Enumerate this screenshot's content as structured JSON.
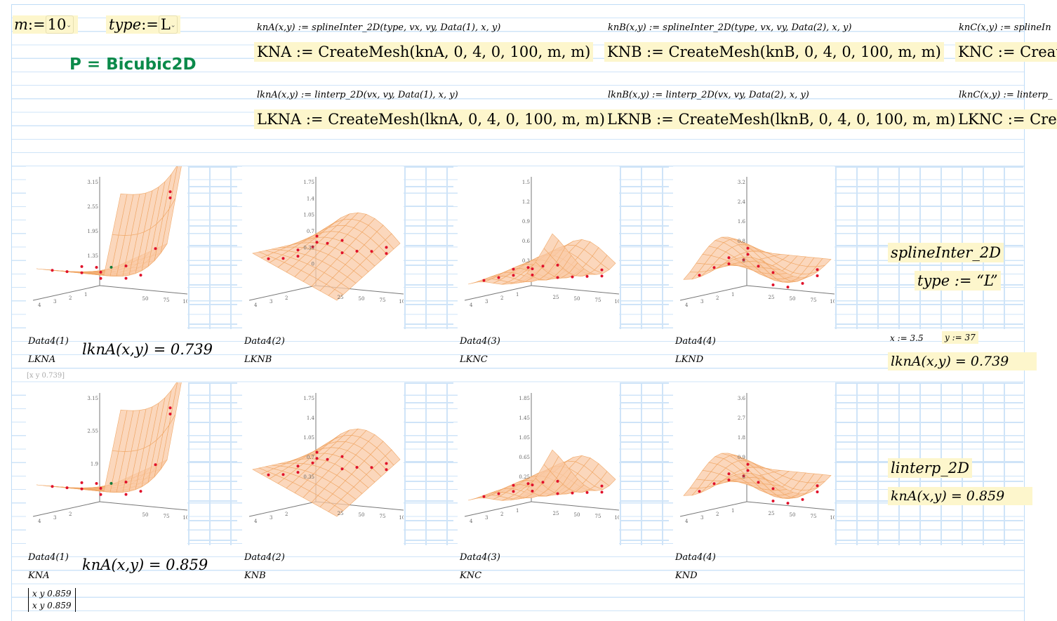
{
  "inputs": {
    "m_label": "m",
    "m_value": "10",
    "type_label": "type",
    "type_value": "L",
    "assign": ":="
  },
  "result_p": "P = Bicubic2D",
  "defs": [
    {
      "spline": "knA(x,y) := splineInter_2D(type, vx, vy, Data(1), x, y)",
      "mesh": "KNA := CreateMesh(knA, 0, 4, 0, 100, m, m)",
      "ldef": "lknA(x,y) := linterp_2D(vx, vy, Data(1), x, y)",
      "lmesh": "LKNA := CreateMesh(lknA, 0, 4, 0, 100, m, m)"
    },
    {
      "spline": "knB(x,y) := splineInter_2D(type, vx, vy, Data(2), x, y)",
      "mesh": "KNB := CreateMesh(knB, 0, 4, 0, 100, m, m)",
      "ldef": "lknB(x,y) := linterp_2D(vx, vy, Data(2), x, y)",
      "lmesh": "LKNB := CreateMesh(lknB, 0, 4, 0, 100, m, m)"
    },
    {
      "spline": "knC(x,y) := splineIn",
      "mesh": "KNC := Create",
      "ldef": "lknC(x,y) := linterp_",
      "lmesh": "LKNC := Creat"
    }
  ],
  "plots_top": [
    {
      "data": "Data4(1)",
      "mesh": "LKNA",
      "zticks": [
        "3.15",
        "2.55",
        "1.95",
        "1.35"
      ],
      "xticks": [
        "4",
        "3",
        "2",
        "1"
      ],
      "yticks": [
        "50",
        "75",
        "100"
      ]
    },
    {
      "data": "Data4(2)",
      "mesh": "LKNB",
      "zticks": [
        "1.75",
        "1.4",
        "1.05",
        "0.7",
        "0.35",
        "0"
      ],
      "xticks": [
        "4",
        "3",
        "2"
      ],
      "yticks": [
        "25",
        "50",
        "75",
        "100"
      ]
    },
    {
      "data": "Data4(3)",
      "mesh": "LKNC",
      "zticks": [
        "1.5",
        "1.2",
        "0.9",
        "0.6",
        "0.3"
      ],
      "xticks": [
        "4",
        "3",
        "2",
        "1"
      ],
      "yticks": [
        "25",
        "50",
        "75",
        "100"
      ]
    },
    {
      "data": "Data4(4)",
      "mesh": "LKND",
      "zticks": [
        "3.2",
        "2.4",
        "1.6",
        "0.8",
        "0"
      ],
      "xticks": [
        "4",
        "3",
        "2",
        "1"
      ],
      "yticks": [
        "25",
        "50",
        "75",
        "100"
      ]
    }
  ],
  "plots_bottom": [
    {
      "data": "Data4(1)",
      "mesh": "KNA",
      "zticks": [
        "3.15",
        "2.55",
        "1.9"
      ],
      "xticks": [
        "4",
        "3",
        "2"
      ],
      "yticks": [
        "50",
        "75",
        "100"
      ]
    },
    {
      "data": "Data4(2)",
      "mesh": "KNB",
      "zticks": [
        "1.75",
        "1.4",
        "1.05",
        "0.7",
        "0.35"
      ],
      "xticks": [
        "4",
        "3",
        "2"
      ],
      "yticks": [
        "25",
        "50",
        "75",
        "100"
      ]
    },
    {
      "data": "Data4(3)",
      "mesh": "KNC",
      "zticks": [
        "1.85",
        "1.45",
        "1.05",
        "0.65",
        "0.25"
      ],
      "xticks": [
        "4",
        "3",
        "2",
        "1"
      ],
      "yticks": [
        "25",
        "50",
        "75",
        "100"
      ]
    },
    {
      "data": "Data4(4)",
      "mesh": "KND",
      "zticks": [
        "3.6",
        "2.7",
        "1.8",
        "0.9",
        "0"
      ],
      "xticks": [
        "4",
        "3",
        "2",
        "1"
      ],
      "yticks": [
        "25",
        "50",
        "75",
        "100"
      ]
    }
  ],
  "eval_top": "lknA(x,y) = 0.739",
  "eval_bottom": "knA(x,y) = 0.859",
  "matrix_top": "[x  y  0.739]",
  "matrix_bottom": [
    "x  y  0.859",
    "x  y  0.859"
  ],
  "side": {
    "title1": "splineInter_2D",
    "type_assign": "type := “L”",
    "x_assign": "x := 3.5",
    "y_assign": "y := 37",
    "eval1": "lknA(x,y) = 0.739",
    "title2": "linterp_2D",
    "eval2": "knA(x,y) = 0.859"
  },
  "colors": {
    "surface": "#f9c9a6",
    "mesh_line": "#f0a868",
    "point": "#e0102a",
    "highlight": "#fdf6cc",
    "result_green": "#0b8a4a"
  }
}
